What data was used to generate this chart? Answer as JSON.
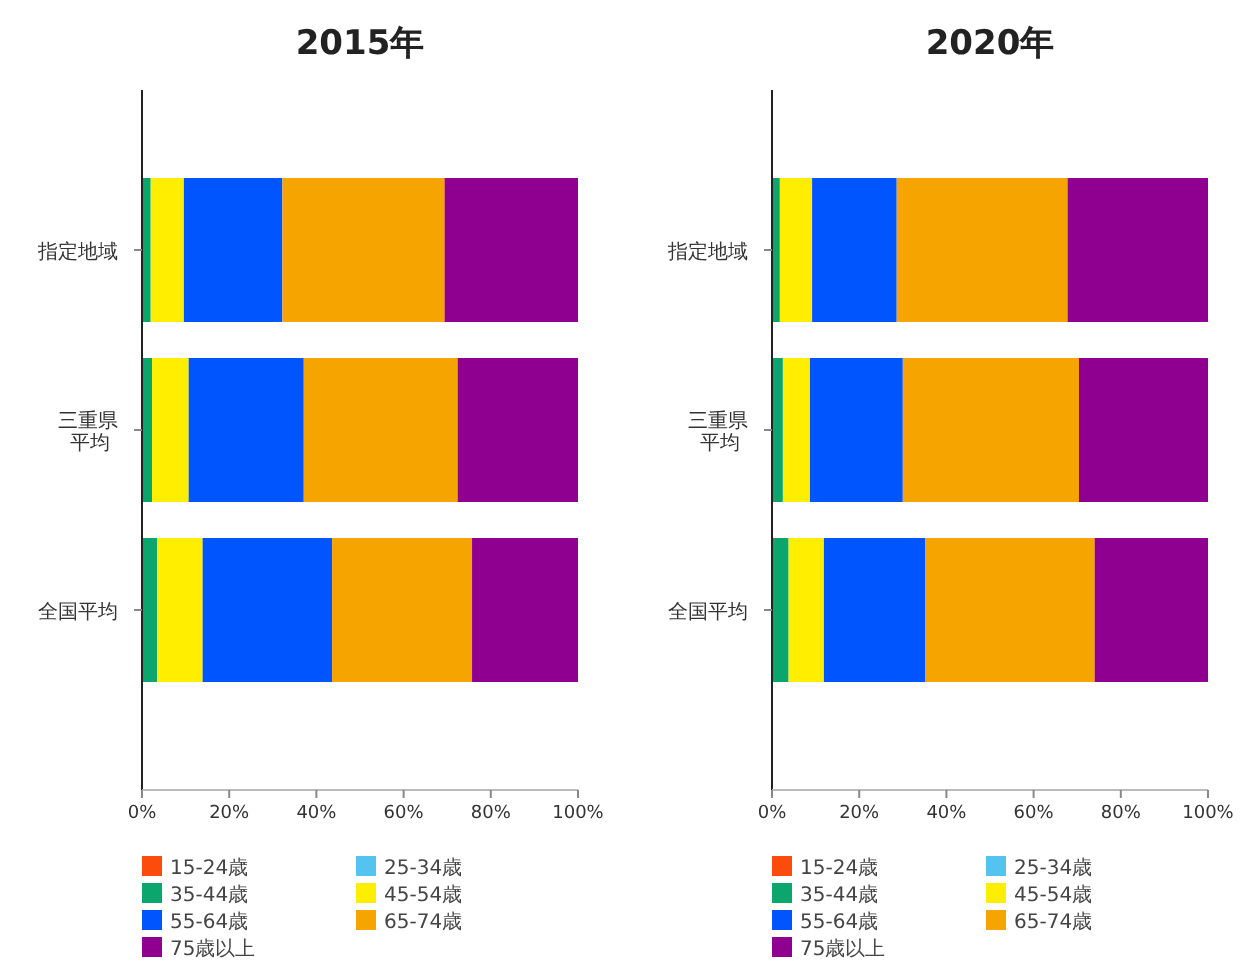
{
  "chart_data": [
    {
      "type": "bar",
      "orientation": "horizontal",
      "stacked": true,
      "title": "2015年",
      "categories": [
        "指定地域",
        "三重県平均",
        "全国平均"
      ],
      "xlim": [
        0,
        100
      ],
      "xticks": [
        {
          "value": 0,
          "label": "0%"
        },
        {
          "value": 20,
          "label": "20%"
        },
        {
          "value": 40,
          "label": "40%"
        },
        {
          "value": 60,
          "label": "60%"
        },
        {
          "value": 80,
          "label": "80%"
        },
        {
          "value": 100,
          "label": "100%"
        }
      ],
      "legend": "bottom",
      "series": [
        {
          "name": "15-24歳",
          "color": "#fc4c0c",
          "values": [
            null,
            null,
            null
          ]
        },
        {
          "name": "25-34歳",
          "color": "#55c3f0",
          "values": [
            null,
            null,
            null
          ]
        },
        {
          "name": "35-44歳",
          "color": "#0aa66e",
          "values": [
            2.0,
            2.3,
            3.5
          ]
        },
        {
          "name": "45-54歳",
          "color": "#ffee00",
          "values": [
            7.6,
            8.4,
            10.4
          ]
        },
        {
          "name": "55-64歳",
          "color": "#0055ff",
          "values": [
            22.6,
            26.4,
            29.7
          ]
        },
        {
          "name": "65-74歳",
          "color": "#f5a400",
          "values": [
            37.2,
            35.3,
            32.1
          ]
        },
        {
          "name": "75歳以上",
          "color": "#900090",
          "values": [
            30.6,
            27.6,
            24.3
          ]
        }
      ]
    },
    {
      "type": "bar",
      "orientation": "horizontal",
      "stacked": true,
      "title": "2020年",
      "categories": [
        "指定地域",
        "三重県平均",
        "全国平均"
      ],
      "xlim": [
        0,
        100
      ],
      "xticks": [
        {
          "value": 0,
          "label": "0%"
        },
        {
          "value": 20,
          "label": "20%"
        },
        {
          "value": 40,
          "label": "40%"
        },
        {
          "value": 60,
          "label": "60%"
        },
        {
          "value": 80,
          "label": "80%"
        },
        {
          "value": 100,
          "label": "100%"
        }
      ],
      "legend": "bottom",
      "series": [
        {
          "name": "15-24歳",
          "color": "#fc4c0c",
          "values": [
            null,
            null,
            null
          ]
        },
        {
          "name": "25-34歳",
          "color": "#55c3f0",
          "values": [
            null,
            null,
            null
          ]
        },
        {
          "name": "35-44歳",
          "color": "#0aa66e",
          "values": [
            1.8,
            2.5,
            3.8
          ]
        },
        {
          "name": "45-54歳",
          "color": "#ffee00",
          "values": [
            7.4,
            6.2,
            8.1
          ]
        },
        {
          "name": "55-64歳",
          "color": "#0055ff",
          "values": [
            19.4,
            21.3,
            23.2
          ]
        },
        {
          "name": "65-74歳",
          "color": "#f5a400",
          "values": [
            39.2,
            40.4,
            38.9
          ]
        },
        {
          "name": "75歳以上",
          "color": "#900090",
          "values": [
            32.2,
            29.6,
            26.0
          ]
        }
      ]
    }
  ]
}
